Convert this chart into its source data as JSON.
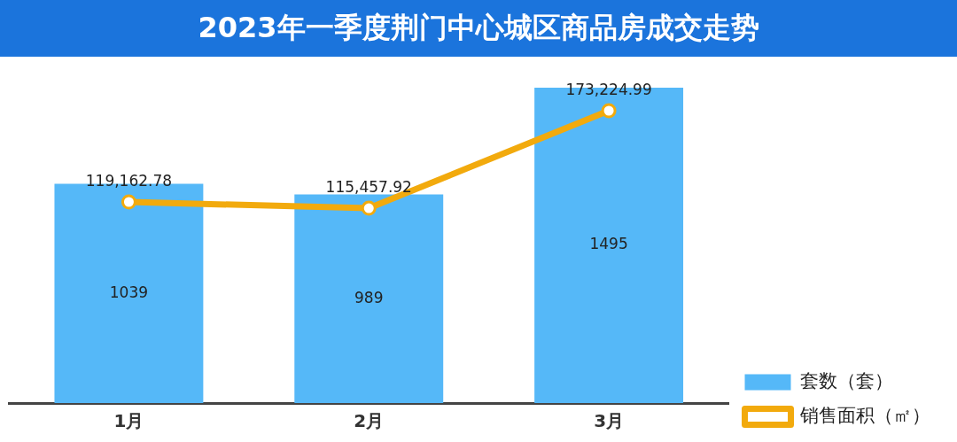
{
  "chart_data": {
    "type": "bar",
    "title": "2023年一季度荆门中心城区商品房成交走势",
    "categories": [
      "1月",
      "2月",
      "3月"
    ],
    "series": [
      {
        "name": "套数（套）",
        "type": "bar",
        "color": "#55b8f8",
        "values": [
          1039,
          989,
          1495
        ]
      },
      {
        "name": "销售面积（㎡）",
        "type": "line",
        "axis": "y2",
        "color": "#f2aa0d",
        "values": [
          119162.78,
          115457.92,
          173224.99
        ],
        "value_labels": [
          "119,162.78",
          "115,457.92",
          "173,224.99"
        ]
      }
    ],
    "tick_labels": "x",
    "grid": false,
    "legend": "bottom right",
    "marker": "circle",
    "data_labels": true
  }
}
